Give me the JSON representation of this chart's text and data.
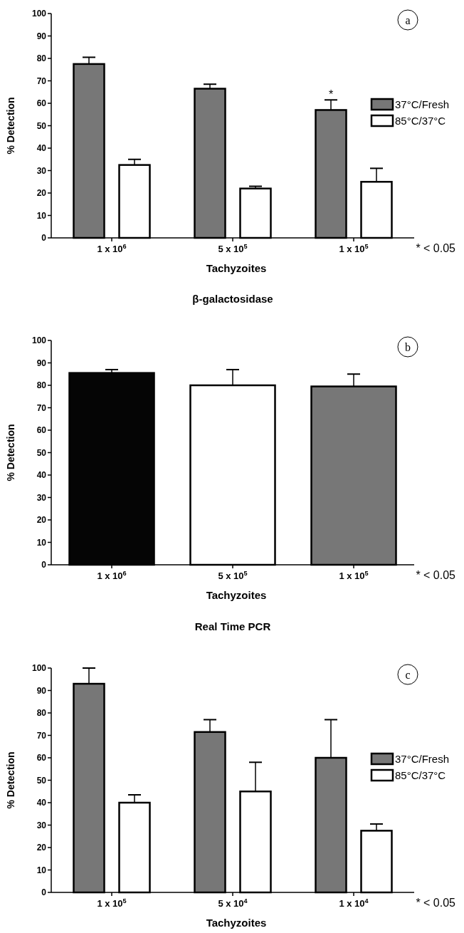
{
  "chart_data": [
    {
      "type": "bar",
      "xlabel": "Tachyzoites",
      "ylabel": "% Detection",
      "categories": [
        "1 x 10$^{6}$",
        "5 x 10$^{5}$",
        "1 x 10$^{5}$"
      ],
      "ylim": [
        0,
        100
      ],
      "yticks": [
        0,
        10,
        20,
        30,
        40,
        50,
        60,
        70,
        80,
        90,
        100
      ],
      "legend": "right",
      "grid": false,
      "series": [
        {
          "name": "37°C/Fresh",
          "color": "#777777",
          "values": [
            77.5,
            66.5,
            57
          ],
          "errors": [
            3,
            2,
            4.5
          ]
        },
        {
          "name": "85°C/37°C",
          "color": "#ffffff",
          "values": [
            32.5,
            22,
            25
          ],
          "errors": [
            2.5,
            1,
            6
          ]
        }
      ],
      "annotations": [
        "a",
        "* < 0.05",
        "*"
      ]
    },
    {
      "type": "bar",
      "title": "β-galactosidase",
      "xlabel": "Tachyzoites",
      "ylabel": "% Detection",
      "categories": [
        "1 x 10$^{6}$",
        "5 x 10$^{5}$",
        "1 x 10$^{5}$"
      ],
      "ylim": [
        0,
        100
      ],
      "yticks": [
        0,
        10,
        20,
        30,
        40,
        50,
        60,
        70,
        80,
        90,
        100
      ],
      "legend": false,
      "grid": false,
      "series": [
        {
          "colors": [
            "#050505",
            "#ffffff",
            "#777777"
          ],
          "values": [
            85.5,
            80,
            79.5
          ],
          "errors": [
            1.5,
            7,
            5.5
          ]
        }
      ],
      "annotations": [
        "b",
        "* < 0.05"
      ]
    },
    {
      "type": "bar",
      "title": "Real Time PCR",
      "xlabel": "Tachyzoites",
      "ylabel": "% Detection",
      "categories": [
        "1 x 10$^{5}$",
        "5 x 10$^{4}$",
        "1 x 10$^{4}$"
      ],
      "ylim": [
        0,
        100
      ],
      "yticks": [
        0,
        10,
        20,
        30,
        40,
        50,
        60,
        70,
        80,
        90,
        100
      ],
      "legend": "right",
      "grid": false,
      "series": [
        {
          "name": "37°C/Fresh",
          "color": "#777777",
          "values": [
            93,
            71.5,
            60
          ],
          "errors": [
            7,
            5.5,
            17
          ]
        },
        {
          "name": "85°C/37°C",
          "color": "#ffffff",
          "values": [
            40,
            45,
            27.5
          ],
          "errors": [
            3.5,
            13,
            3
          ]
        }
      ],
      "annotations": [
        "c",
        "* < 0.05"
      ]
    }
  ]
}
